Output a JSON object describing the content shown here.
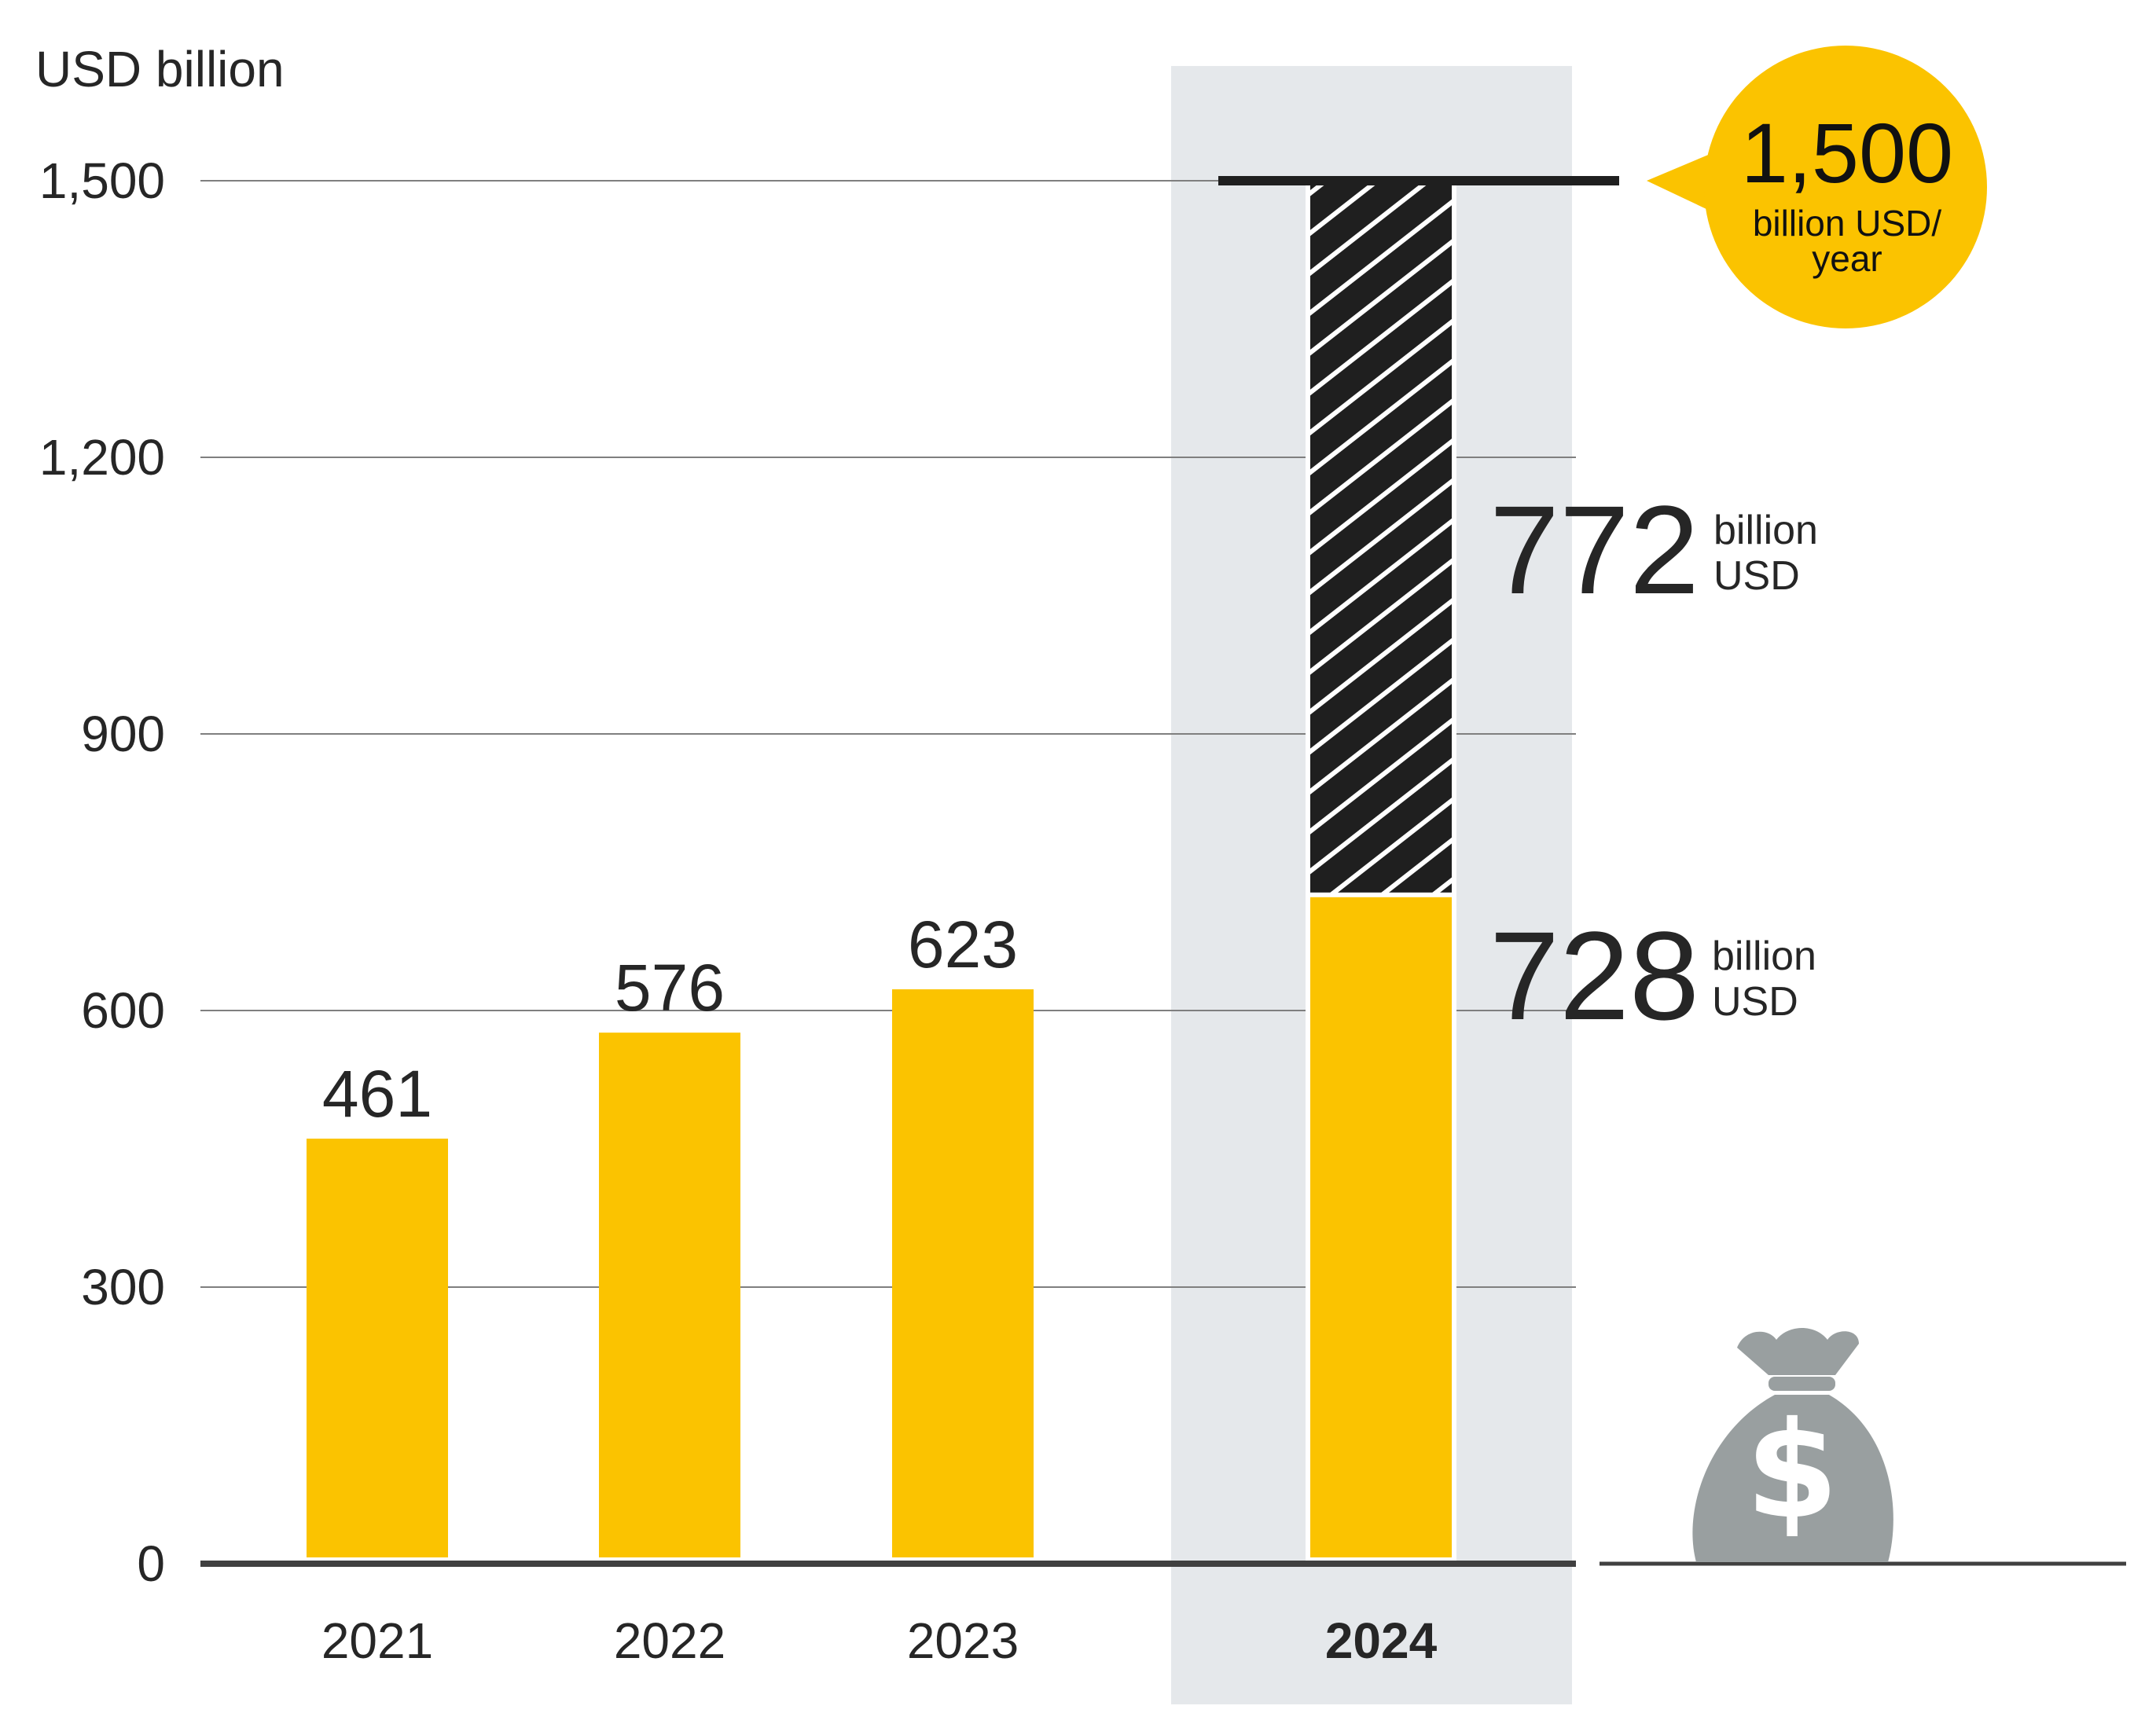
{
  "chart_data": {
    "type": "bar",
    "ylabel": "USD billion",
    "ylim": [
      0,
      1500
    ],
    "yticks": [
      "0",
      "300",
      "600",
      "900",
      "1,200",
      "1,500"
    ],
    "grid": true,
    "categories": [
      "2021",
      "2022",
      "2023",
      "2024"
    ],
    "highlighted_category": "2024",
    "series": [
      {
        "values": [
          461,
          576,
          623,
          728
        ]
      },
      {
        "values": [
          null,
          null,
          null,
          772
        ]
      }
    ],
    "data_labels": [
      "461",
      "576",
      "623"
    ],
    "annotations": {
      "gap": {
        "value": "772",
        "unit_line1": "billion",
        "unit_line2": "USD"
      },
      "base": {
        "value": "728",
        "unit_line1": "billion",
        "unit_line2": "USD"
      },
      "target": {
        "value": "1,500",
        "unit_line1": "billion USD/",
        "unit_line2": "year"
      }
    },
    "colors": {
      "bar": "#FBC300",
      "hatch_bg": "#1f1f1f",
      "hatch_line": "#ffffff",
      "highlight_band": "#E5E8EB",
      "grid": "#7f7f7f",
      "axis": "#404040",
      "icon": "#999fa0",
      "bubble": "#FBC300"
    },
    "icon": "money-bag-dollar-icon"
  }
}
